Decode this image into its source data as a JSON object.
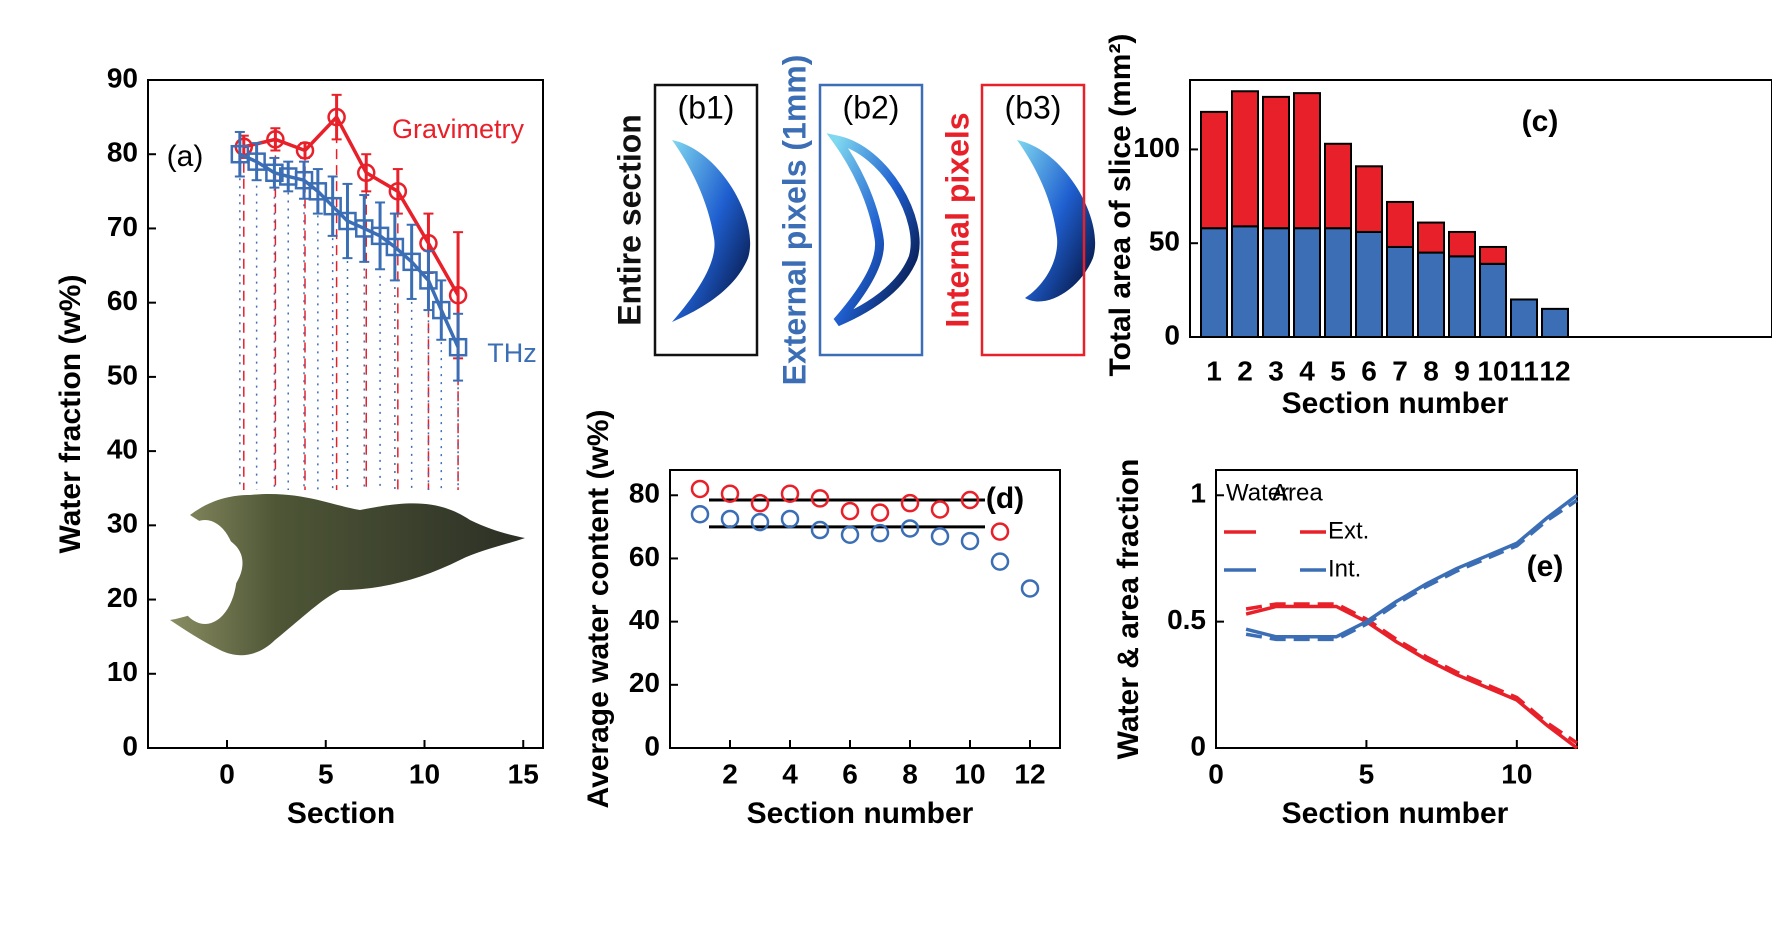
{
  "chart_data": [
    {
      "type": "line",
      "xlabel": "Section",
      "ylabel": "Water fraction (w%)",
      "xlim": [
        -4,
        16
      ],
      "xticks": [
        0,
        5,
        10,
        15
      ],
      "ylim": [
        0,
        90
      ],
      "yticks": [
        0,
        10,
        20,
        30,
        40,
        50,
        60,
        70,
        80,
        90
      ],
      "annotations": [
        "(a)"
      ],
      "series": [
        {
          "name": "Gravimetry",
          "color": "#e8202a",
          "marker": "circle",
          "x": [
            0.85,
            2.45,
            3.95,
            5.55,
            7.05,
            8.65,
            10.2,
            11.7
          ],
          "values": [
            81,
            82,
            80.5,
            85,
            77.5,
            75,
            68,
            61
          ],
          "errors": [
            1.5,
            1.5,
            1,
            3,
            2.5,
            3,
            4,
            8.5
          ]
        },
        {
          "name": "THz",
          "color": "#3b6eb4",
          "marker": "square",
          "x": [
            0.65,
            1.5,
            2.4,
            3.1,
            3.9,
            4.6,
            5.35,
            6.1,
            6.95,
            7.75,
            8.5,
            9.35,
            10.2,
            10.85,
            11.7
          ],
          "values": [
            80,
            79,
            77.5,
            77,
            76.5,
            75,
            73,
            71,
            70,
            69,
            67.5,
            65.5,
            63,
            59,
            54
          ],
          "errors": [
            3,
            2.5,
            2,
            2,
            2.5,
            3,
            4,
            5,
            4.5,
            4.5,
            4.5,
            5,
            4,
            4,
            4.5
          ]
        }
      ]
    },
    {
      "type": "stacked-bar",
      "xlabel": "Section number",
      "ylabel": "Total area of slice (mm²)",
      "categories": [
        "1",
        "2",
        "3",
        "4",
        "5",
        "6",
        "7",
        "8",
        "9",
        "10",
        "11",
        "12"
      ],
      "ylim": [
        0,
        137
      ],
      "yticks": [
        0,
        50,
        100
      ],
      "annotations": [
        "(c)"
      ],
      "series": [
        {
          "color": "#3b6eb4",
          "values": [
            58,
            59,
            58,
            58,
            58,
            56,
            48,
            45,
            43,
            39,
            20,
            15
          ]
        },
        {
          "color": "#e8202a",
          "values": [
            62,
            72,
            70,
            72,
            45,
            35,
            24,
            16,
            13,
            9,
            0,
            0
          ]
        }
      ]
    },
    {
      "type": "scatter",
      "xlabel": "Section number",
      "ylabel": "Average water content (w%)",
      "xlim": [
        0,
        13
      ],
      "xticks": [
        2,
        4,
        6,
        8,
        10,
        12
      ],
      "ylim": [
        0,
        88
      ],
      "yticks": [
        0,
        20,
        40,
        60,
        80
      ],
      "annotations": [
        "(d)"
      ],
      "series": [
        {
          "color": "#e8202a",
          "x": [
            1,
            2,
            3,
            4,
            5,
            6,
            7,
            8,
            9,
            10,
            11
          ],
          "values": [
            82,
            80.5,
            77.5,
            80.5,
            79,
            75,
            74.5,
            77.5,
            75.5,
            78.5,
            68.5
          ]
        },
        {
          "color": "#3b6eb4",
          "x": [
            1,
            2,
            3,
            4,
            5,
            6,
            7,
            8,
            9,
            10,
            11,
            12
          ],
          "values": [
            74,
            72.5,
            71.5,
            72.5,
            69,
            67.5,
            68,
            69.5,
            67,
            65.5,
            59,
            50.5
          ]
        }
      ],
      "hlines": [
        {
          "y": 78.5,
          "x": [
            1.3,
            10.5
          ]
        },
        {
          "y": 70,
          "x": [
            1.3,
            10.5
          ]
        }
      ]
    },
    {
      "type": "line",
      "xlabel": "Section number",
      "ylabel": "Water & area fraction",
      "xlim": [
        0,
        12
      ],
      "xticks": [
        0,
        5,
        10
      ],
      "ylim": [
        0,
        1.1
      ],
      "yticks": [
        0,
        0.5,
        1
      ],
      "annotations": [
        "(e)"
      ],
      "legend": {
        "columns": [
          "Water",
          "Area"
        ],
        "rows": [
          "Ext.",
          "Int."
        ]
      },
      "series": [
        {
          "color": "#e8202a",
          "dash": true,
          "x": [
            1,
            2,
            3,
            4,
            5,
            6,
            7,
            8,
            9,
            10,
            11,
            12
          ],
          "values": [
            0.55,
            0.57,
            0.57,
            0.57,
            0.51,
            0.43,
            0.36,
            0.3,
            0.25,
            0.2,
            0.1,
            0.02
          ]
        },
        {
          "color": "#e8202a",
          "dash": false,
          "x": [
            1,
            2,
            3,
            4,
            5,
            6,
            7,
            8,
            9,
            10,
            11,
            12
          ],
          "values": [
            0.53,
            0.56,
            0.56,
            0.56,
            0.5,
            0.42,
            0.35,
            0.29,
            0.24,
            0.19,
            0.09,
            0
          ]
        },
        {
          "color": "#3b6eb4",
          "dash": true,
          "x": [
            1,
            2,
            3,
            4,
            5,
            6,
            7,
            8,
            9,
            10,
            11,
            12
          ],
          "values": [
            0.45,
            0.43,
            0.43,
            0.43,
            0.49,
            0.57,
            0.64,
            0.7,
            0.75,
            0.8,
            0.9,
            0.98
          ]
        },
        {
          "color": "#3b6eb4",
          "dash": false,
          "x": [
            1,
            2,
            3,
            4,
            5,
            6,
            7,
            8,
            9,
            10,
            11,
            12
          ],
          "values": [
            0.47,
            0.44,
            0.44,
            0.44,
            0.5,
            0.58,
            0.65,
            0.71,
            0.76,
            0.81,
            0.91,
            1
          ]
        }
      ]
    }
  ],
  "images": [
    {
      "label": "(b1)",
      "title": "Entire section",
      "color": "#111111"
    },
    {
      "label": "(b2)",
      "title": "External pixels (1mm)",
      "color": "#3b6eb4"
    },
    {
      "label": "(b3)",
      "title": "Internal pixels",
      "color": "#e8202a"
    }
  ]
}
